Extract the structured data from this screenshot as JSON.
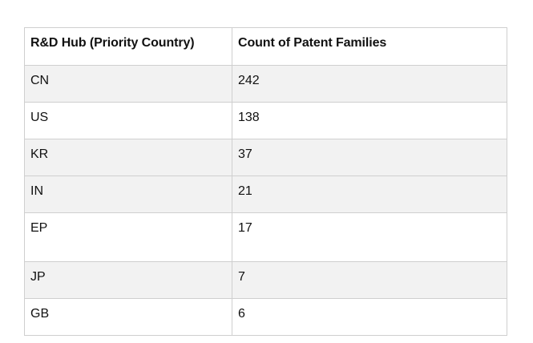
{
  "table": {
    "headers": [
      "R&D Hub (Priority Country)",
      "Count of Patent Families"
    ],
    "rows": [
      {
        "hub": "CN",
        "count": "242"
      },
      {
        "hub": "US",
        "count": "138"
      },
      {
        "hub": "KR",
        "count": "37"
      },
      {
        "hub": "IN",
        "count": "21"
      },
      {
        "hub": "EP",
        "count": "17"
      },
      {
        "hub": "JP",
        "count": "7"
      },
      {
        "hub": "GB",
        "count": "6"
      }
    ]
  }
}
